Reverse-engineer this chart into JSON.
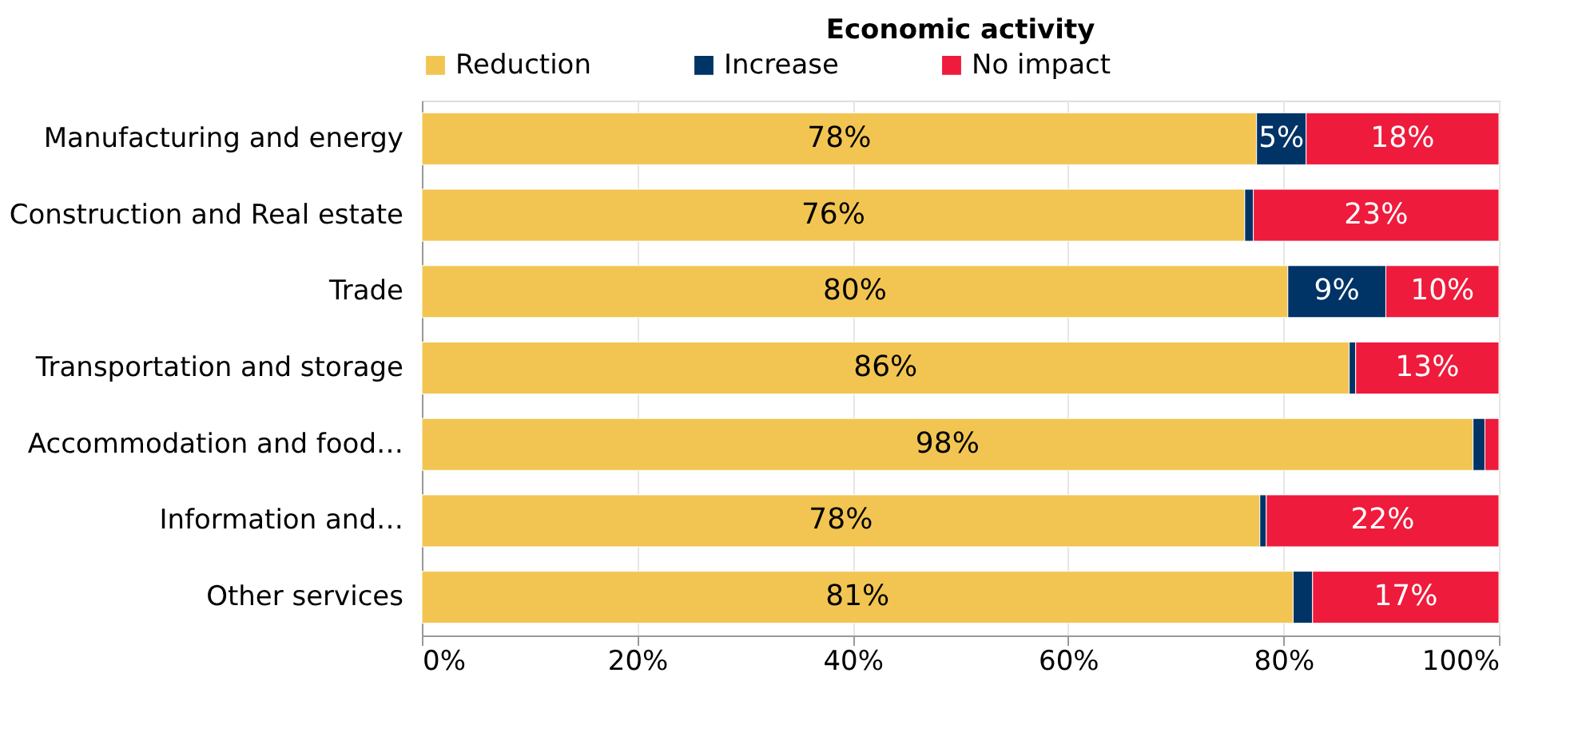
{
  "chart_data": {
    "type": "bar",
    "orientation": "horizontal",
    "stacked": true,
    "title": "Economic activity",
    "categories": [
      "Manufacturing and energy",
      "Construction and Real estate",
      "Trade",
      "Transportation and storage",
      "Accommodation and food…",
      "Information and…",
      "Other services"
    ],
    "series": [
      {
        "name": "Reduction",
        "color": "#f2c552",
        "values": [
          77.5,
          76.4,
          80.4,
          86.1,
          97.6,
          77.8,
          80.9
        ],
        "value_labels": [
          "78%",
          "76%",
          "80%",
          "86%",
          "98%",
          "78%",
          "81%"
        ]
      },
      {
        "name": "Increase",
        "color": "#003366",
        "values": [
          4.6,
          0.8,
          9.1,
          0.6,
          1.1,
          0.6,
          1.8
        ],
        "value_labels": [
          "5%",
          null,
          "9%",
          null,
          null,
          null,
          null
        ]
      },
      {
        "name": "No impact",
        "color": "#ee1b3c",
        "values": [
          17.9,
          22.8,
          10.5,
          13.3,
          1.3,
          21.6,
          17.3
        ],
        "value_labels": [
          "18%",
          "23%",
          "10%",
          "13%",
          null,
          "22%",
          "17%"
        ]
      }
    ],
    "xlim": [
      0,
      100
    ],
    "xticks": [
      {
        "value": 0,
        "label": "0%"
      },
      {
        "value": 20,
        "label": "20%"
      },
      {
        "value": 40,
        "label": "40%"
      },
      {
        "value": 60,
        "label": "60%"
      },
      {
        "value": 80,
        "label": "80%"
      },
      {
        "value": 100,
        "label": "100%"
      }
    ],
    "grid": "x",
    "legend": "top"
  }
}
